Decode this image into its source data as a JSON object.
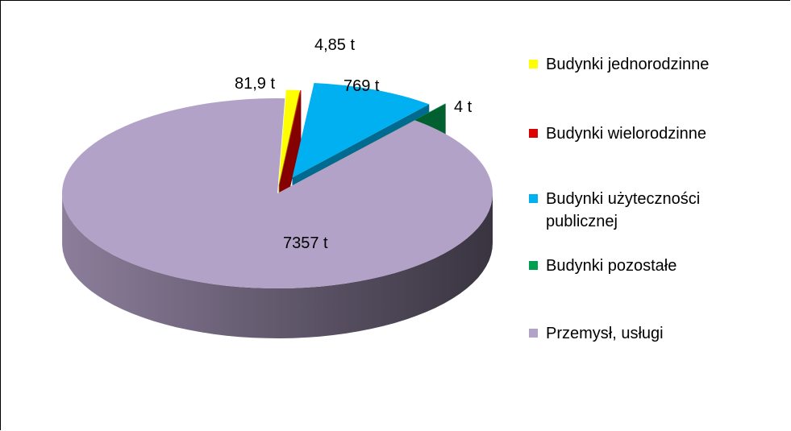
{
  "chart_data": {
    "type": "pie",
    "title": "",
    "slices": [
      {
        "label": "Budynki jednorodzinne",
        "value": 81.9,
        "data_label": "81,9 t",
        "color": "#ffff00"
      },
      {
        "label": "Budynki wielorodzinne",
        "value": 4.85,
        "data_label": "4,85  t",
        "color": "#dd0000"
      },
      {
        "label": "Budynki użyteczności publicznej",
        "value": 769,
        "data_label": "769  t",
        "color": "#00b0f0"
      },
      {
        "label": "Budynki pozostałe",
        "value": 4,
        "data_label": "4  t",
        "color": "#00a050"
      },
      {
        "label": "Przemysł, usługi",
        "value": 7357,
        "data_label": "7357 t",
        "color": "#b3a2c7"
      }
    ],
    "legend_position": "right",
    "exploded": true,
    "three_d": true
  }
}
